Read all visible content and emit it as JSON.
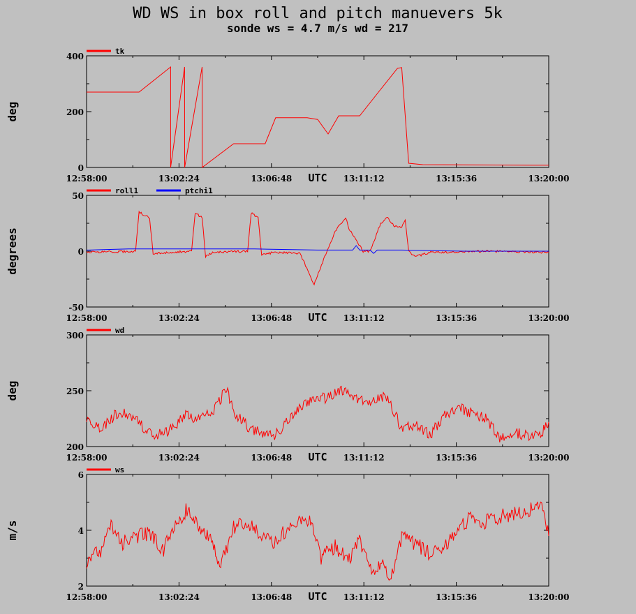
{
  "title": "WD WS in box roll and pitch manuevers 5k",
  "subtitle": "sonde ws = 4.7 m/s wd = 217",
  "colors": {
    "background": "#c0c0c0",
    "red": "#ff0000",
    "blue": "#0000ff"
  },
  "chart_data": [
    {
      "type": "line",
      "ylabel": "deg",
      "xlabel": "UTC",
      "x_ticks": [
        "12:58:00",
        "13:02:24",
        "13:06:48",
        "13:11:12",
        "13:15:36",
        "13:20:00"
      ],
      "xlim": [
        "12:58:00",
        "13:20:00"
      ],
      "ylim": [
        0,
        400
      ],
      "y_ticks": [
        "0",
        "200",
        "400"
      ],
      "series": [
        {
          "name": "tk",
          "color": "#ff0000",
          "x": [
            "12:58:00",
            "13:00:30",
            "13:02:00",
            "13:02:00.1",
            "13:02:40",
            "13:02:40.1",
            "13:03:30",
            "13:03:30.1",
            "13:05:00",
            "13:06:30",
            "13:07:00",
            "13:08:30",
            "13:09:00",
            "13:09:30",
            "13:10:00",
            "13:11:00",
            "13:12:00",
            "13:12:48",
            "13:13:00",
            "13:13:20",
            "13:14:00",
            "13:20:00"
          ],
          "y": [
            270,
            270,
            360,
            0,
            360,
            0,
            360,
            0,
            85,
            85,
            178,
            178,
            172,
            120,
            185,
            185,
            280,
            355,
            358,
            15,
            10,
            8
          ]
        }
      ]
    },
    {
      "type": "line",
      "ylabel": "degrees",
      "xlabel": "UTC",
      "x_ticks": [
        "12:58:00",
        "13:02:24",
        "13:06:48",
        "13:11:12",
        "13:15:36",
        "13:20:00"
      ],
      "xlim": [
        "12:58:00",
        "13:20:00"
      ],
      "ylim": [
        -50,
        50
      ],
      "y_ticks": [
        "-50",
        "0",
        "50"
      ],
      "series": [
        {
          "name": "roll1",
          "color": "#ff0000",
          "x": [
            "12:58:00",
            "13:00:20",
            "13:00:30",
            "13:01:00",
            "13:01:10",
            "13:02:00",
            "13:03:00",
            "13:03:10",
            "13:03:30",
            "13:03:40",
            "13:04:00",
            "13:05:40",
            "13:05:50",
            "13:06:10",
            "13:06:20",
            "13:07:00",
            "13:08:10",
            "13:08:50",
            "13:09:20",
            "13:09:50",
            "13:10:20",
            "13:10:30",
            "13:11:10",
            "13:11:30",
            "13:12:00",
            "13:12:20",
            "13:12:40",
            "13:13:00",
            "13:13:10",
            "13:13:20",
            "13:13:40",
            "13:14:20",
            "13:15:00",
            "13:17:00",
            "13:20:00"
          ],
          "y": [
            -1,
            0,
            35,
            30,
            -2,
            -1,
            0,
            34,
            30,
            -5,
            -1,
            0,
            34,
            30,
            -3,
            -1,
            -2,
            -30,
            -5,
            18,
            30,
            20,
            0,
            0,
            25,
            30,
            22,
            22,
            28,
            0,
            -5,
            -1,
            -1,
            0,
            -1
          ]
        },
        {
          "name": "ptchi1",
          "color": "#0000ff",
          "x": [
            "12:58:00",
            "13:00:00",
            "13:03:00",
            "13:06:00",
            "13:09:00",
            "13:10:40",
            "13:10:50",
            "13:11:00",
            "13:11:30",
            "13:11:40",
            "13:11:50",
            "13:13:00",
            "13:16:00",
            "13:20:00"
          ],
          "y": [
            1,
            2,
            2,
            2,
            1,
            1,
            5,
            1,
            1,
            -2,
            1,
            1,
            0,
            0
          ]
        }
      ]
    },
    {
      "type": "line",
      "ylabel": "deg",
      "xlabel": "UTC",
      "x_ticks": [
        "12:58:00",
        "13:02:24",
        "13:06:48",
        "13:11:12",
        "13:15:36",
        "13:20:00"
      ],
      "xlim": [
        "12:58:00",
        "13:20:00"
      ],
      "ylim": [
        200,
        300
      ],
      "y_ticks": [
        "200",
        "250",
        "300"
      ],
      "series": [
        {
          "name": "wd",
          "color": "#ff0000",
          "x": [
            "12:58:00",
            "12:58:40",
            "12:59:20",
            "13:00:00",
            "13:00:40",
            "13:01:20",
            "13:02:00",
            "13:02:40",
            "13:03:20",
            "13:04:00",
            "13:04:40",
            "13:05:00",
            "13:05:40",
            "13:06:20",
            "13:07:00",
            "13:07:40",
            "13:08:20",
            "13:09:00",
            "13:09:40",
            "13:10:20",
            "13:11:00",
            "13:11:40",
            "13:12:20",
            "13:13:00",
            "13:13:40",
            "13:14:20",
            "13:15:00",
            "13:15:40",
            "13:16:20",
            "13:17:00",
            "13:17:40",
            "13:18:20",
            "13:19:00",
            "13:19:40",
            "13:20:00"
          ],
          "y": [
            225,
            215,
            228,
            230,
            218,
            210,
            215,
            228,
            225,
            230,
            252,
            232,
            218,
            212,
            210,
            225,
            238,
            242,
            245,
            252,
            240,
            242,
            245,
            215,
            220,
            210,
            228,
            235,
            230,
            225,
            208,
            212,
            210,
            213,
            222
          ]
        }
      ]
    },
    {
      "type": "line",
      "ylabel": "m/s",
      "xlabel": "UTC",
      "x_ticks": [
        "12:58:00",
        "13:02:24",
        "13:06:48",
        "13:11:12",
        "13:15:36",
        "13:20:00"
      ],
      "xlim": [
        "12:58:00",
        "13:20:00"
      ],
      "ylim": [
        2,
        6
      ],
      "y_ticks": [
        "2",
        "4",
        "6"
      ],
      "series": [
        {
          "name": "ws",
          "color": "#ff0000",
          "x": [
            "12:58:00",
            "12:58:40",
            "12:59:10",
            "12:59:40",
            "13:00:20",
            "13:01:00",
            "13:01:40",
            "13:02:20",
            "13:02:50",
            "13:03:20",
            "13:04:00",
            "13:04:20",
            "13:05:00",
            "13:05:40",
            "13:06:20",
            "13:06:50",
            "13:07:30",
            "13:08:10",
            "13:08:40",
            "13:09:10",
            "13:09:50",
            "13:10:30",
            "13:11:00",
            "13:11:40",
            "13:12:00",
            "13:12:30",
            "13:13:00",
            "13:13:40",
            "13:14:20",
            "13:15:00",
            "13:15:40",
            "13:16:20",
            "13:17:00",
            "13:17:40",
            "13:18:20",
            "13:19:00",
            "13:19:40",
            "13:20:00"
          ],
          "y": [
            2.8,
            3.3,
            4.1,
            3.5,
            3.8,
            3.9,
            3.3,
            4.3,
            4.8,
            4.0,
            3.6,
            2.6,
            4.1,
            4.2,
            3.9,
            3.5,
            4.0,
            4.5,
            4.4,
            3.0,
            3.4,
            2.9,
            3.6,
            2.5,
            2.8,
            2.4,
            3.8,
            3.5,
            3.2,
            3.3,
            4.0,
            4.5,
            4.3,
            4.5,
            4.6,
            4.7,
            5.0,
            3.8
          ]
        }
      ]
    }
  ]
}
